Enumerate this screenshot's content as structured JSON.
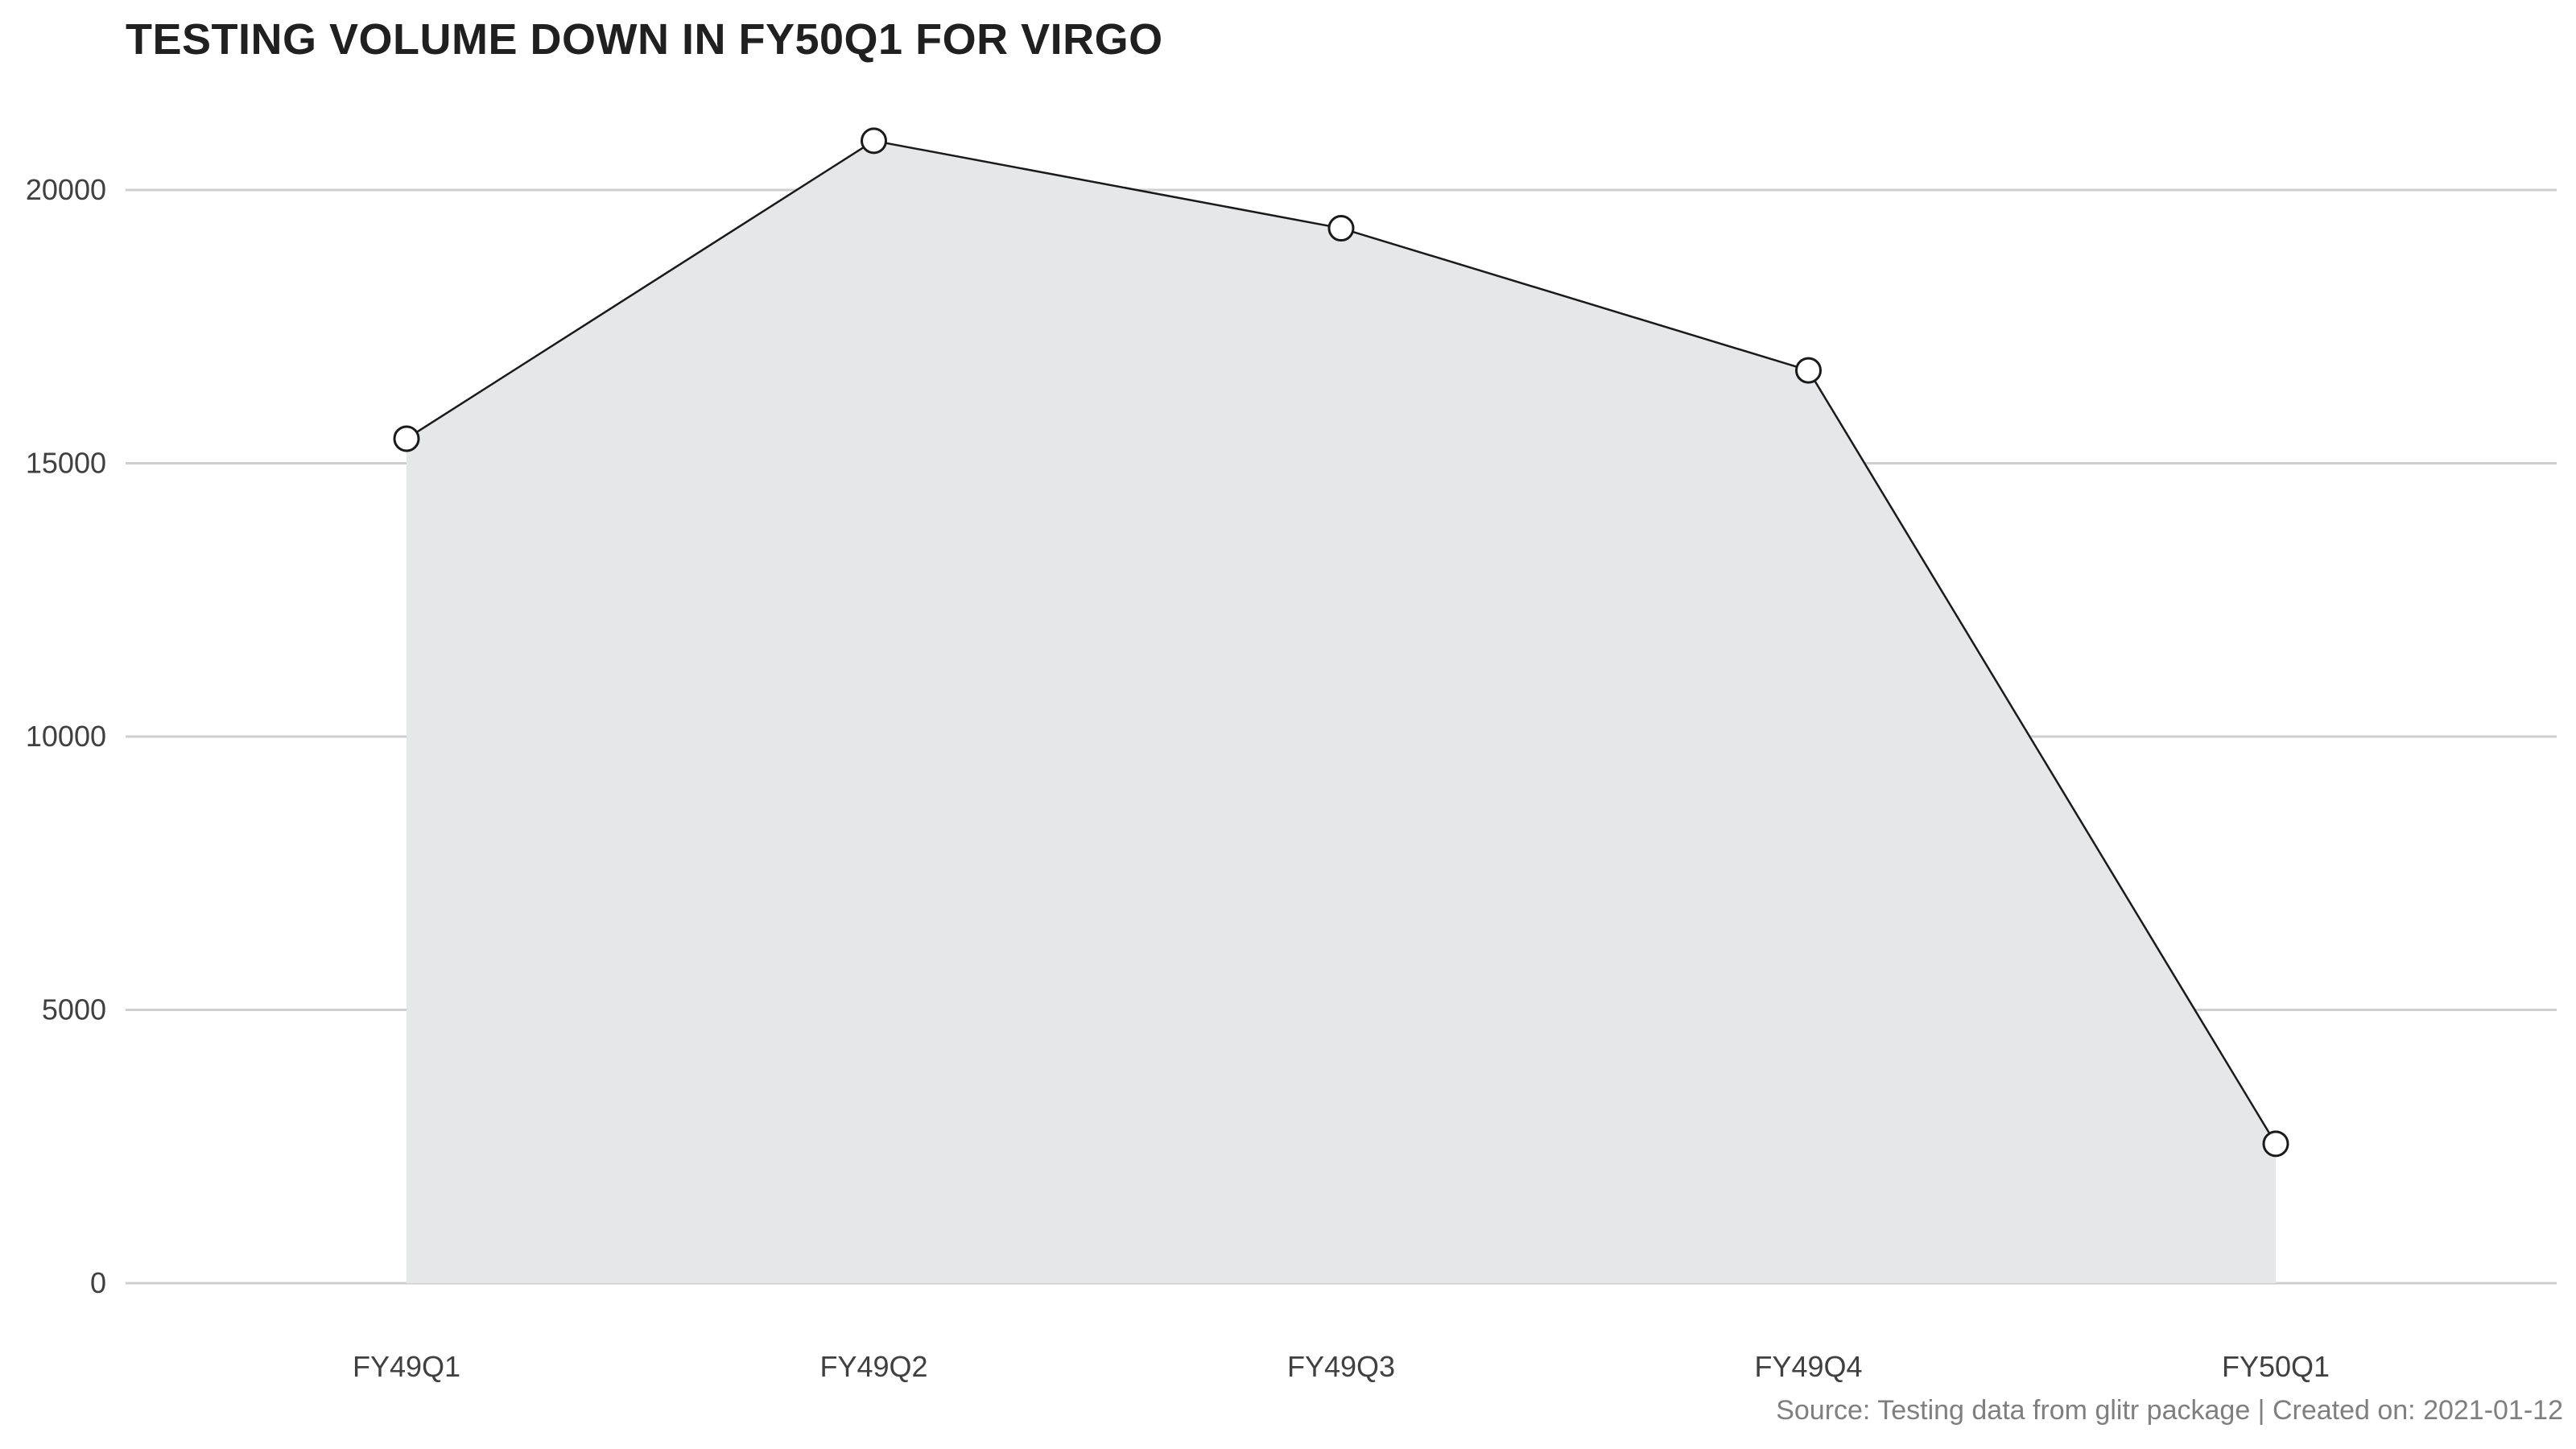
{
  "chart_data": {
    "type": "area",
    "title": "TESTING VOLUME DOWN IN FY50Q1 FOR VIRGO",
    "categories": [
      "FY49Q1",
      "FY49Q2",
      "FY49Q3",
      "FY49Q4",
      "FY50Q1"
    ],
    "series": [
      {
        "values": [
          15450,
          20900,
          19300,
          16700,
          2550
        ]
      }
    ],
    "ylim": [
      0,
      21000
    ],
    "yticks": [
      "0",
      "5000",
      "10000",
      "15000",
      "20000"
    ],
    "grid": "horizontal",
    "legend": "none",
    "caption": "Source: Testing data from glitr package | Created on: 2021-01-12",
    "colors": {
      "area_fill": "#e6e7e8",
      "line": "#1a1a1a",
      "point_fill": "#ffffff",
      "gridline": "#cfcfcf"
    }
  }
}
